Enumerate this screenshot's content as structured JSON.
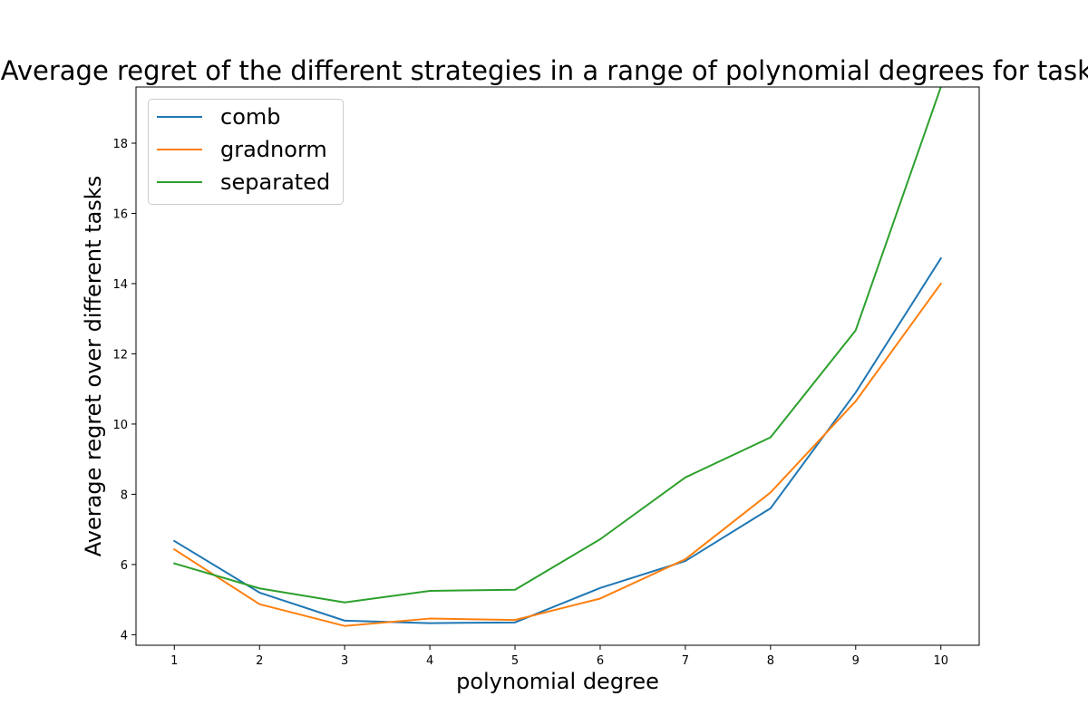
{
  "chart_data": {
    "type": "line",
    "title": "Average regret of the different strategies in a range of polynomial degrees for task=",
    "xlabel": "polynomial degree",
    "ylabel": "Average regret over different tasks",
    "x": [
      1,
      2,
      3,
      4,
      5,
      6,
      7,
      8,
      9,
      10
    ],
    "xlim": [
      0.55,
      10.45
    ],
    "ylim": [
      3.7,
      19.6
    ],
    "x_ticks": [
      "1",
      "2",
      "3",
      "4",
      "5",
      "6",
      "7",
      "8",
      "9",
      "10"
    ],
    "y_ticks": [
      "4",
      "6",
      "8",
      "10",
      "12",
      "14",
      "16",
      "18"
    ],
    "grid": false,
    "legend": {
      "location": "upper left"
    },
    "series": [
      {
        "name": "comb",
        "color": "#1f77b4",
        "values": [
          6.67,
          5.2,
          4.4,
          4.33,
          4.35,
          5.33,
          6.1,
          7.6,
          10.9,
          14.72
        ]
      },
      {
        "name": "gradnorm",
        "color": "#ff7f0e",
        "values": [
          6.43,
          4.87,
          4.25,
          4.46,
          4.42,
          5.03,
          6.15,
          8.05,
          10.65,
          14.0
        ]
      },
      {
        "name": "separated",
        "color": "#2ca02c",
        "values": [
          6.03,
          5.32,
          4.92,
          5.25,
          5.28,
          6.72,
          8.48,
          9.62,
          12.67,
          19.6
        ]
      }
    ]
  }
}
